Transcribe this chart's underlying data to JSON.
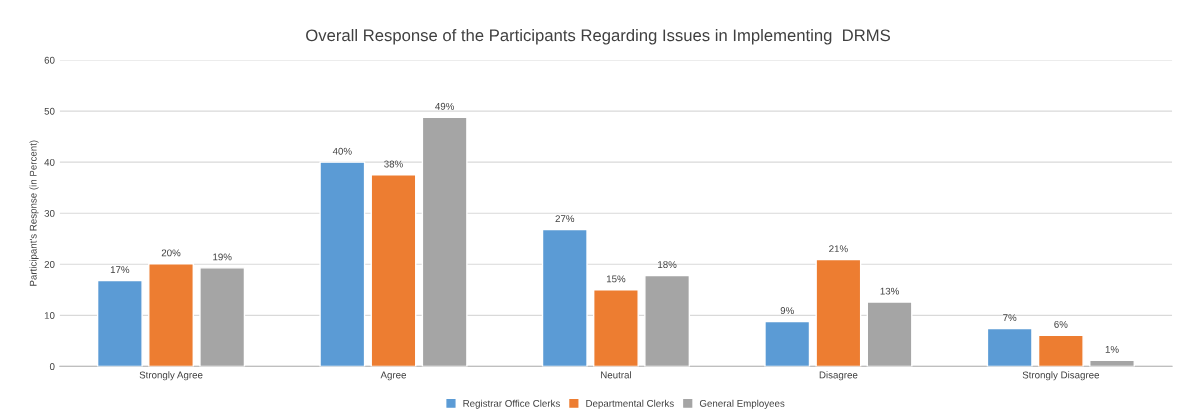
{
  "chart_data": {
    "type": "bar",
    "title": "Overall Response of the Participants Regarding Issues in Implementing  DRMS",
    "ylabel": "Participant's Respnse (in Percent)",
    "categories": [
      "Strongly Agree",
      "Agree",
      "Neutral",
      "Disagree",
      "Strongly Disagree"
    ],
    "series": [
      {
        "name": "Registrar Office Clerks",
        "color": "#5b9bd5",
        "values": [
          16.8,
          40.0,
          26.8,
          8.8,
          7.4
        ],
        "value_labels": [
          "17%",
          "40%",
          "27%",
          "9%",
          "7%"
        ]
      },
      {
        "name": "Departmental Clerks",
        "color": "#ed7d31",
        "values": [
          20.1,
          37.5,
          15.0,
          20.9,
          6.1
        ],
        "value_labels": [
          "20%",
          "38%",
          "15%",
          "21%",
          "6%"
        ]
      },
      {
        "name": "General Employees",
        "color": "#a5a5a5",
        "values": [
          19.3,
          48.8,
          17.8,
          12.6,
          1.2
        ],
        "value_labels": [
          "19%",
          "49%",
          "18%",
          "13%",
          "1%"
        ]
      }
    ],
    "ylim": [
      0,
      60
    ],
    "yticks": [
      0,
      10,
      20,
      30,
      40,
      50,
      60
    ],
    "grid": "y",
    "legend": "bottom"
  }
}
